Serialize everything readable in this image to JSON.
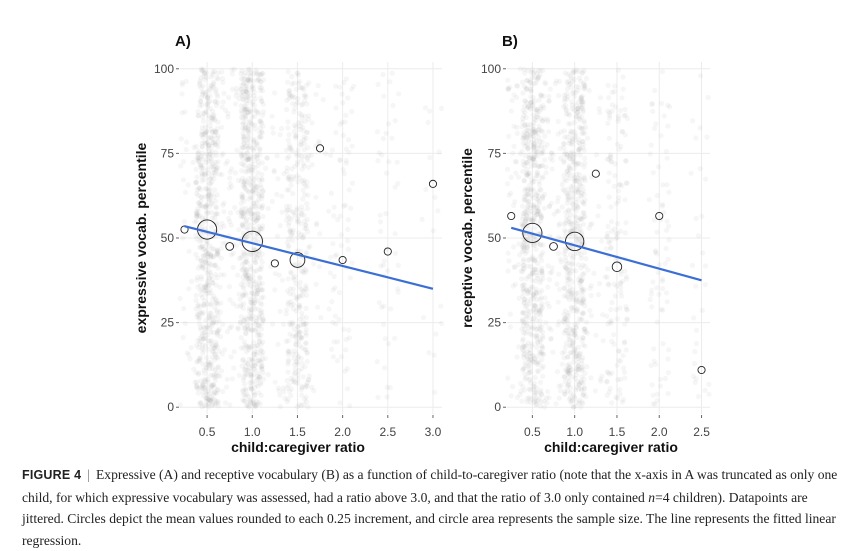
{
  "chart_data": [
    {
      "type": "scatter",
      "panel": "A)",
      "xlabel": "child:caregiver ratio",
      "ylabel": "expressive vocab. percentile",
      "xlim": [
        0.2,
        3.1
      ],
      "ylim": [
        -2,
        102
      ],
      "xticks": [
        0.5,
        1.0,
        1.5,
        2.0,
        2.5,
        3.0
      ],
      "xtick_labels": [
        "0.5",
        "1.0",
        "1.5",
        "2.0",
        "2.5",
        "3.0"
      ],
      "yticks": [
        0,
        25,
        50,
        75,
        100
      ],
      "ytick_labels": [
        "0",
        "25",
        "50",
        "75",
        "100"
      ],
      "means": [
        {
          "x": 0.25,
          "y": 52.5,
          "n": 8
        },
        {
          "x": 0.5,
          "y": 52.5,
          "n": 120
        },
        {
          "x": 0.75,
          "y": 47.5,
          "n": 20
        },
        {
          "x": 1.0,
          "y": 49.0,
          "n": 135
        },
        {
          "x": 1.25,
          "y": 42.5,
          "n": 8
        },
        {
          "x": 1.5,
          "y": 43.5,
          "n": 70
        },
        {
          "x": 1.75,
          "y": 76.5,
          "n": 6
        },
        {
          "x": 2.0,
          "y": 43.5,
          "n": 15
        },
        {
          "x": 2.5,
          "y": 46.0,
          "n": 10
        },
        {
          "x": 3.0,
          "y": 66.0,
          "n": 4
        }
      ],
      "regression": {
        "x": [
          0.25,
          3.0
        ],
        "y": [
          53.5,
          35.0
        ]
      }
    },
    {
      "type": "scatter",
      "panel": "B)",
      "xlabel": "child:caregiver ratio",
      "ylabel": "receptive vocab. percentile",
      "xlim": [
        0.2,
        2.6
      ],
      "ylim": [
        -2,
        102
      ],
      "xticks": [
        0.5,
        1.0,
        1.5,
        2.0,
        2.5
      ],
      "xtick_labels": [
        "0.5",
        "1.0",
        "1.5",
        "2.0",
        "2.5"
      ],
      "yticks": [
        0,
        25,
        50,
        75,
        100
      ],
      "ytick_labels": [
        "0",
        "25",
        "50",
        "75",
        "100"
      ],
      "means": [
        {
          "x": 0.25,
          "y": 56.5,
          "n": 15
        },
        {
          "x": 0.5,
          "y": 51.5,
          "n": 120
        },
        {
          "x": 0.75,
          "y": 47.5,
          "n": 20
        },
        {
          "x": 1.0,
          "y": 49.0,
          "n": 110
        },
        {
          "x": 1.25,
          "y": 69.0,
          "n": 8
        },
        {
          "x": 1.5,
          "y": 41.5,
          "n": 30
        },
        {
          "x": 2.0,
          "y": 56.5,
          "n": 15
        },
        {
          "x": 2.5,
          "y": 11.0,
          "n": 6
        }
      ],
      "regression": {
        "x": [
          0.25,
          2.5
        ],
        "y": [
          53.0,
          37.5
        ]
      }
    }
  ],
  "colors": {
    "regression": "#3b6fd6",
    "points": "#9a9a9a",
    "grid": "#ececec",
    "circle_stroke": "#222222"
  },
  "caption": {
    "figure_number": "FIGURE 4",
    "separator": "|",
    "text_part1": "Expressive (A) and receptive vocabulary (B) as a function of child-to-caregiver ratio (note that the x-axis in A was truncated as only one child, for which expressive vocabulary was assessed, had a ratio above 3.0, and that the ratio of 3.0 only contained ",
    "n_symbol": "n",
    "text_part2": "=4 children). Datapoints are jittered. Circles depict the mean values rounded to each 0.25 increment, and circle area represents the sample size. The line represents the fitted linear regression."
  }
}
